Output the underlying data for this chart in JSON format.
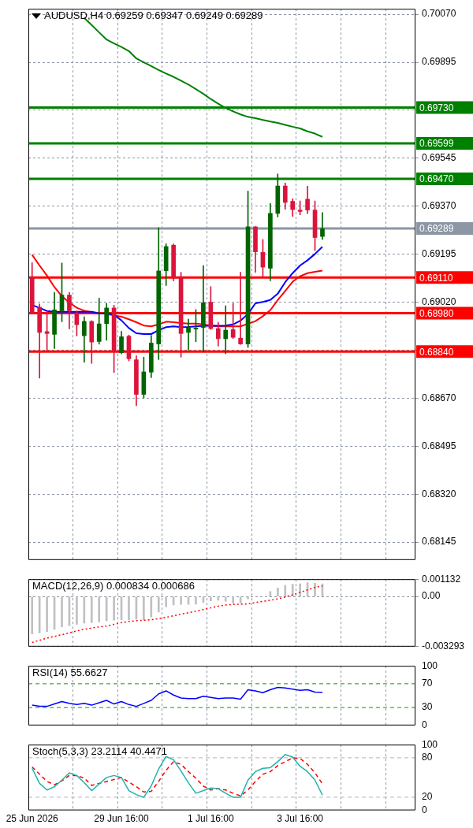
{
  "chart_data": [
    {
      "type": "candlestick",
      "title": "AUDUSD,H4 0.69259 0.69347 0.69249 0.69289",
      "categories": [
        null,
        null,
        null,
        null,
        null,
        null,
        null,
        null,
        null,
        null,
        null,
        null,
        null,
        null,
        null,
        null,
        null,
        null,
        null,
        null,
        null,
        null,
        null,
        null,
        null,
        null,
        null,
        null,
        null,
        null,
        null,
        null,
        null,
        null,
        null,
        null,
        null,
        null,
        null,
        null,
        null,
        null,
        null,
        null,
        null,
        null,
        null,
        null,
        null,
        null,
        null,
        null
      ],
      "ohlc": [
        [
          0.69108,
          0.69164,
          0.68977,
          0.68982
        ],
        [
          0.69003,
          0.69014,
          0.68743,
          0.68909
        ],
        [
          0.68914,
          0.68988,
          0.68841,
          0.68905
        ],
        [
          0.68902,
          0.69056,
          0.68851,
          0.68993
        ],
        [
          0.68988,
          0.69163,
          0.68949,
          0.69047
        ],
        [
          0.69047,
          0.69056,
          0.68923,
          0.68988
        ],
        [
          0.68981,
          0.68988,
          0.68897,
          0.68937
        ],
        [
          0.68897,
          0.68967,
          0.68801,
          0.68951
        ],
        [
          0.68951,
          0.68953,
          0.68797,
          0.68874
        ],
        [
          0.68876,
          0.69035,
          0.68867,
          0.68942
        ],
        [
          0.68941,
          0.69016,
          0.68881,
          0.69
        ],
        [
          0.69,
          0.69009,
          0.68764,
          0.68839
        ],
        [
          0.68835,
          0.68914,
          0.68832,
          0.68895
        ],
        [
          0.68897,
          0.689,
          0.68806,
          0.68813
        ],
        [
          0.68811,
          0.68825,
          0.68643,
          0.68683
        ],
        [
          0.68683,
          0.6882,
          0.68671,
          0.68767
        ],
        [
          0.68764,
          0.68899,
          0.68745,
          0.68872
        ],
        [
          0.68867,
          0.69292,
          0.68811,
          0.69135
        ],
        [
          0.69134,
          0.69233,
          0.69081,
          0.69224
        ],
        [
          0.69229,
          0.69233,
          0.69098,
          0.69107
        ],
        [
          0.69114,
          0.69129,
          0.6882,
          0.68905
        ],
        [
          0.68909,
          0.68958,
          0.68846,
          0.68927
        ],
        [
          0.68921,
          0.68993,
          0.68876,
          0.68927
        ],
        [
          0.68927,
          0.69154,
          0.68839,
          0.69019
        ],
        [
          0.69021,
          0.69077,
          0.68921,
          0.68923
        ],
        [
          0.68925,
          0.68947,
          0.6886,
          0.68886
        ],
        [
          0.68886,
          0.69007,
          0.68832,
          0.68919
        ],
        [
          0.68921,
          0.69016,
          0.68888,
          0.68891
        ],
        [
          0.6889,
          0.69129,
          0.68866,
          0.68867
        ],
        [
          0.68867,
          0.69425,
          0.68855,
          0.69296
        ],
        [
          0.69296,
          0.69296,
          0.69129,
          0.69203
        ],
        [
          0.69203,
          0.69249,
          0.69109,
          0.69147
        ],
        [
          0.69143,
          0.6938,
          0.69098,
          0.69345
        ],
        [
          0.69343,
          0.69488,
          0.69331,
          0.69445
        ],
        [
          0.69445,
          0.69455,
          0.69359,
          0.69383
        ],
        [
          0.69389,
          0.69397,
          0.69333,
          0.69357
        ],
        [
          0.69357,
          0.69389,
          0.69339,
          0.6935
        ],
        [
          0.69397,
          0.69443,
          0.69343,
          0.69355
        ],
        [
          0.69357,
          0.69389,
          0.69208,
          0.69255
        ],
        [
          0.69259,
          0.69347,
          0.69249,
          0.69289
        ],
        null,
        null,
        null,
        null,
        null,
        null,
        null,
        null,
        null,
        null,
        null,
        null
      ],
      "colors": [
        "#dc143c",
        "#dc143c",
        "#dc143c",
        "#006400",
        "#006400",
        "#dc143c",
        "#dc143c",
        "#006400",
        "#dc143c",
        "#006400",
        "#006400",
        "#dc143c",
        "#006400",
        "#dc143c",
        "#dc143c",
        "#006400",
        "#006400",
        "#006400",
        "#006400",
        "#dc143c",
        "#dc143c",
        "#006400",
        "#006400",
        "#006400",
        "#dc143c",
        "#dc143c",
        "#006400",
        "#dc143c",
        "#dc143c",
        "#006400",
        "#dc143c",
        "#dc143c",
        "#006400",
        "#006400",
        "#dc143c",
        "#dc143c",
        "#dc143c",
        "#dc143c",
        "#dc143c",
        "#006400",
        null,
        null,
        null,
        null,
        null,
        null,
        null,
        null,
        null,
        null,
        null,
        null
      ],
      "series": [
        {
          "type": "line",
          "color": "#0000ff",
          "values": [
            0.6901,
            0.68999,
            0.68988,
            0.68985,
            0.68985,
            0.68985,
            0.68985,
            0.68985,
            0.68985,
            0.68979,
            0.68979,
            0.68974,
            0.68954,
            0.68926,
            0.68907,
            0.68904,
            0.68904,
            0.68918,
            0.68929,
            0.68932,
            0.68929,
            0.6893,
            0.68932,
            0.68934,
            0.68934,
            0.68934,
            0.68935,
            0.68939,
            0.68953,
            0.68977,
            0.69016,
            0.69021,
            0.69028,
            0.69051,
            0.69093,
            0.69126,
            0.69154,
            0.69173,
            0.69196,
            0.69222,
            null,
            null,
            null,
            null,
            null,
            null,
            null,
            null,
            null,
            null,
            null,
            null
          ]
        },
        {
          "type": "line",
          "color": "#ff0000",
          "values": [
            0.69193,
            0.69154,
            0.69117,
            0.69075,
            0.69042,
            0.69019,
            0.69,
            0.68989,
            0.68984,
            0.68981,
            0.68977,
            0.68972,
            0.68967,
            0.68958,
            0.68947,
            0.68935,
            0.68932,
            0.68939,
            0.68949,
            0.68947,
            0.68944,
            0.68942,
            0.68942,
            0.68939,
            0.68935,
            0.68932,
            0.68932,
            0.68932,
            0.68932,
            0.68941,
            0.68951,
            0.68969,
            0.68991,
            0.69028,
            0.69061,
            0.69095,
            0.69115,
            0.69126,
            0.69131,
            0.69135,
            null,
            null,
            null,
            null,
            null,
            null,
            null,
            null,
            null,
            null,
            null,
            null
          ]
        },
        {
          "type": "line",
          "color": "#008000",
          "values": [
            null,
            null,
            null,
            null,
            null,
            null,
            null,
            0.70057,
            0.70031,
            0.70004,
            0.69978,
            0.69964,
            0.69951,
            0.69936,
            0.69909,
            0.69895,
            0.69881,
            0.69867,
            0.69854,
            0.69842,
            0.69828,
            0.69814,
            0.69797,
            0.6978,
            0.69761,
            0.69744,
            0.69728,
            0.69716,
            0.69705,
            0.69696,
            0.69691,
            0.69685,
            0.69679,
            0.69674,
            0.69667,
            0.6966,
            0.69654,
            0.69643,
            0.69635,
            0.69623,
            null,
            null,
            null,
            null,
            null,
            null,
            null,
            null,
            null,
            null,
            null,
            null
          ]
        }
      ],
      "ylim": [
        0.6808,
        0.7009
      ],
      "yticks": [
        {
          "value": 0.7007,
          "label": "0.70070"
        },
        0.69895,
        {
          "value": 0.6972,
          "label": null
        },
        0.69545,
        {
          "value": 0.6937,
          "label": "0.69370"
        },
        0.69195,
        {
          "value": 0.6902,
          "label": "0.69020"
        },
        {
          "value": 0.68845,
          "label": null
        },
        {
          "value": 0.6867,
          "label": "0.68670"
        },
        0.68495,
        {
          "value": 0.6832,
          "label": "0.68320"
        },
        0.68145
      ],
      "ref_lines": [
        {
          "axis": "y",
          "value": 0.6973,
          "label": "0.69730",
          "color": "#008000"
        },
        {
          "axis": "y",
          "value": 0.69599,
          "label": "0.69599",
          "color": "#008000"
        },
        {
          "axis": "y",
          "value": 0.6947,
          "label": "0.69470",
          "color": "#008000"
        },
        {
          "axis": "y",
          "value": 0.69289,
          "label": "0.69289",
          "color": "#8c96a5"
        },
        {
          "axis": "y",
          "value": 0.6911,
          "label": "0.69110",
          "color": "#ff0000"
        },
        {
          "axis": "y",
          "value": 0.6898,
          "label": "0.68980",
          "color": "#ff0000"
        },
        {
          "axis": "y",
          "value": 0.6884,
          "label": "0.68840",
          "color": "#ff0000"
        }
      ],
      "grid": true,
      "tick_labels": "y",
      "marker": "none"
    },
    {
      "type": "bar",
      "title": "MACD(12,26,9) 0.000834 0.000686",
      "categories": [
        null,
        null,
        null,
        null,
        null,
        null,
        null,
        null,
        null,
        null,
        null,
        null,
        null,
        null,
        null,
        null,
        null,
        null,
        null,
        null,
        null,
        null,
        null,
        null,
        null,
        null,
        null,
        null,
        null,
        null,
        null,
        null,
        null,
        null,
        null,
        null,
        null,
        null,
        null,
        null,
        null,
        null,
        null,
        null,
        null,
        null,
        null,
        null,
        null,
        null,
        null,
        null
      ],
      "series": [
        {
          "type": "bar",
          "color": "#c0c0c0",
          "values": [
            -0.00246,
            -0.00239,
            -0.00231,
            -0.00216,
            -0.002,
            -0.00191,
            -0.00183,
            -0.00175,
            -0.00172,
            -0.00167,
            -0.00159,
            -0.00156,
            -0.00153,
            -0.00153,
            -0.00149,
            -0.00153,
            -0.00135,
            -0.00103,
            -0.00068,
            -0.00056,
            -0.00052,
            -0.00052,
            -0.00051,
            -0.0004,
            -0.00029,
            -0.00025,
            -0.00032,
            -0.00043,
            -0.00043,
            -0.00016,
            null,
            null,
            0.00032,
            0.00056,
            0.00072,
            0.0008,
            0.00083,
            0.00091,
            0.00087,
            0.000834,
            null,
            null,
            null,
            null,
            null,
            null,
            null,
            null,
            null,
            null,
            null,
            null
          ]
        },
        {
          "type": "line",
          "color": "#ff0000",
          "line_style": "dotted",
          "values": [
            -0.00302,
            -0.00288,
            -0.00273,
            -0.00262,
            -0.00251,
            -0.00239,
            -0.00226,
            -0.00216,
            -0.00207,
            -0.002,
            -0.00194,
            -0.00183,
            -0.00172,
            -0.00164,
            -0.00159,
            -0.00156,
            -0.00153,
            -0.00146,
            -0.00137,
            -0.00127,
            -0.00116,
            -0.00107,
            -0.00097,
            -0.00086,
            -0.00075,
            -0.00064,
            -0.00056,
            -0.00052,
            -0.00051,
            -0.00049,
            -0.0004,
            -0.00032,
            -0.00025,
            -0.00016,
            -3e-05,
            0.00011,
            0.00027,
            0.00043,
            0.0006,
            0.000686,
            null,
            null,
            null,
            null,
            null,
            null,
            null,
            null,
            null,
            null,
            null,
            null
          ]
        }
      ],
      "ylim": [
        -0.003293,
        0.001132
      ],
      "yticks": [
        0.001132,
        {
          "value": 0,
          "label": "0.00"
        },
        -0.003293
      ],
      "grid": true,
      "tick_labels": "y",
      "marker": "none"
    },
    {
      "type": "line",
      "title": "RSI(14) 55.6627",
      "categories": [
        null,
        null,
        null,
        null,
        null,
        null,
        null,
        null,
        null,
        null,
        null,
        null,
        null,
        null,
        null,
        null,
        null,
        null,
        null,
        null,
        null,
        null,
        null,
        null,
        null,
        null,
        null,
        null,
        null,
        null,
        null,
        null,
        null,
        null,
        null,
        null,
        null,
        null,
        null,
        null,
        null,
        null,
        null,
        null,
        null,
        null,
        null,
        null,
        null,
        null,
        null,
        null
      ],
      "series": [
        {
          "color": "#0000ff",
          "values": [
            34,
            32,
            32,
            36,
            40,
            37,
            35,
            37,
            34,
            38,
            42,
            36,
            40,
            35,
            32,
            37,
            42,
            53,
            58,
            51,
            46,
            45,
            45,
            49,
            47,
            45,
            46,
            46,
            44,
            60,
            58,
            55,
            60,
            64,
            63,
            61,
            59,
            60,
            56,
            55.6627,
            null,
            null,
            null,
            null,
            null,
            null,
            null,
            null,
            null,
            null,
            null,
            null
          ]
        }
      ],
      "ylim": [
        0,
        100
      ],
      "yticks": [
        100,
        70,
        30,
        0
      ],
      "ref_lines": [
        {
          "axis": "y",
          "value": 70,
          "color": "#00a000",
          "line_style": "dashed"
        },
        {
          "axis": "y",
          "value": 30,
          "color": "#00a000",
          "line_style": "dashed"
        }
      ],
      "grid": "x",
      "tick_labels": "y",
      "marker": "none"
    },
    {
      "type": "line",
      "title": "Stoch(5,3,3) 23.2114 40.4471",
      "categories": [
        "25 Jun 2026",
        null,
        null,
        null,
        null,
        null,
        null,
        null,
        null,
        null,
        null,
        null,
        "29 Jun 16:00",
        null,
        null,
        null,
        null,
        null,
        null,
        null,
        null,
        null,
        null,
        null,
        "1 Jul 16:00",
        null,
        null,
        null,
        null,
        null,
        null,
        null,
        null,
        null,
        null,
        null,
        "3 Jul 16:00",
        null,
        null,
        null,
        null,
        null,
        null,
        null,
        null,
        null,
        null,
        null,
        null,
        null,
        null,
        null
      ],
      "series": [
        {
          "color": "#20b2aa",
          "values": [
            64,
            41,
            31,
            36,
            46,
            57,
            53,
            42,
            30,
            40,
            50,
            53,
            50,
            30,
            24,
            20,
            37,
            63,
            82,
            77,
            60,
            42,
            26,
            30,
            34,
            33,
            26,
            20,
            20,
            46,
            59,
            64,
            65,
            74,
            85,
            81,
            67,
            59,
            46,
            23.2114,
            null,
            null,
            null,
            null,
            null,
            null,
            null,
            null,
            null,
            null,
            null,
            null
          ]
        },
        {
          "color": "#ff0000",
          "line_style": "dashed",
          "values": [
            66,
            55,
            44,
            39,
            45,
            53,
            53,
            49,
            38,
            41,
            44,
            47,
            50,
            43,
            36,
            28,
            29,
            44,
            61,
            74,
            70,
            59,
            49,
            37,
            31,
            33,
            31,
            26,
            22,
            31,
            44,
            55,
            59,
            68,
            74,
            80,
            79,
            70,
            57,
            40.4471,
            null,
            null,
            null,
            null,
            null,
            null,
            null,
            null,
            null,
            null,
            null,
            null
          ]
        }
      ],
      "ylim": [
        0,
        100
      ],
      "yticks": [
        100,
        80,
        20,
        0
      ],
      "ref_lines": [
        {
          "axis": "y",
          "value": 80,
          "color": "#b4b4b4",
          "line_style": "dashed"
        },
        {
          "axis": "y",
          "value": 20,
          "color": "#b4b4b4",
          "line_style": "dashed"
        }
      ],
      "grid": "x",
      "marker": "none"
    }
  ]
}
